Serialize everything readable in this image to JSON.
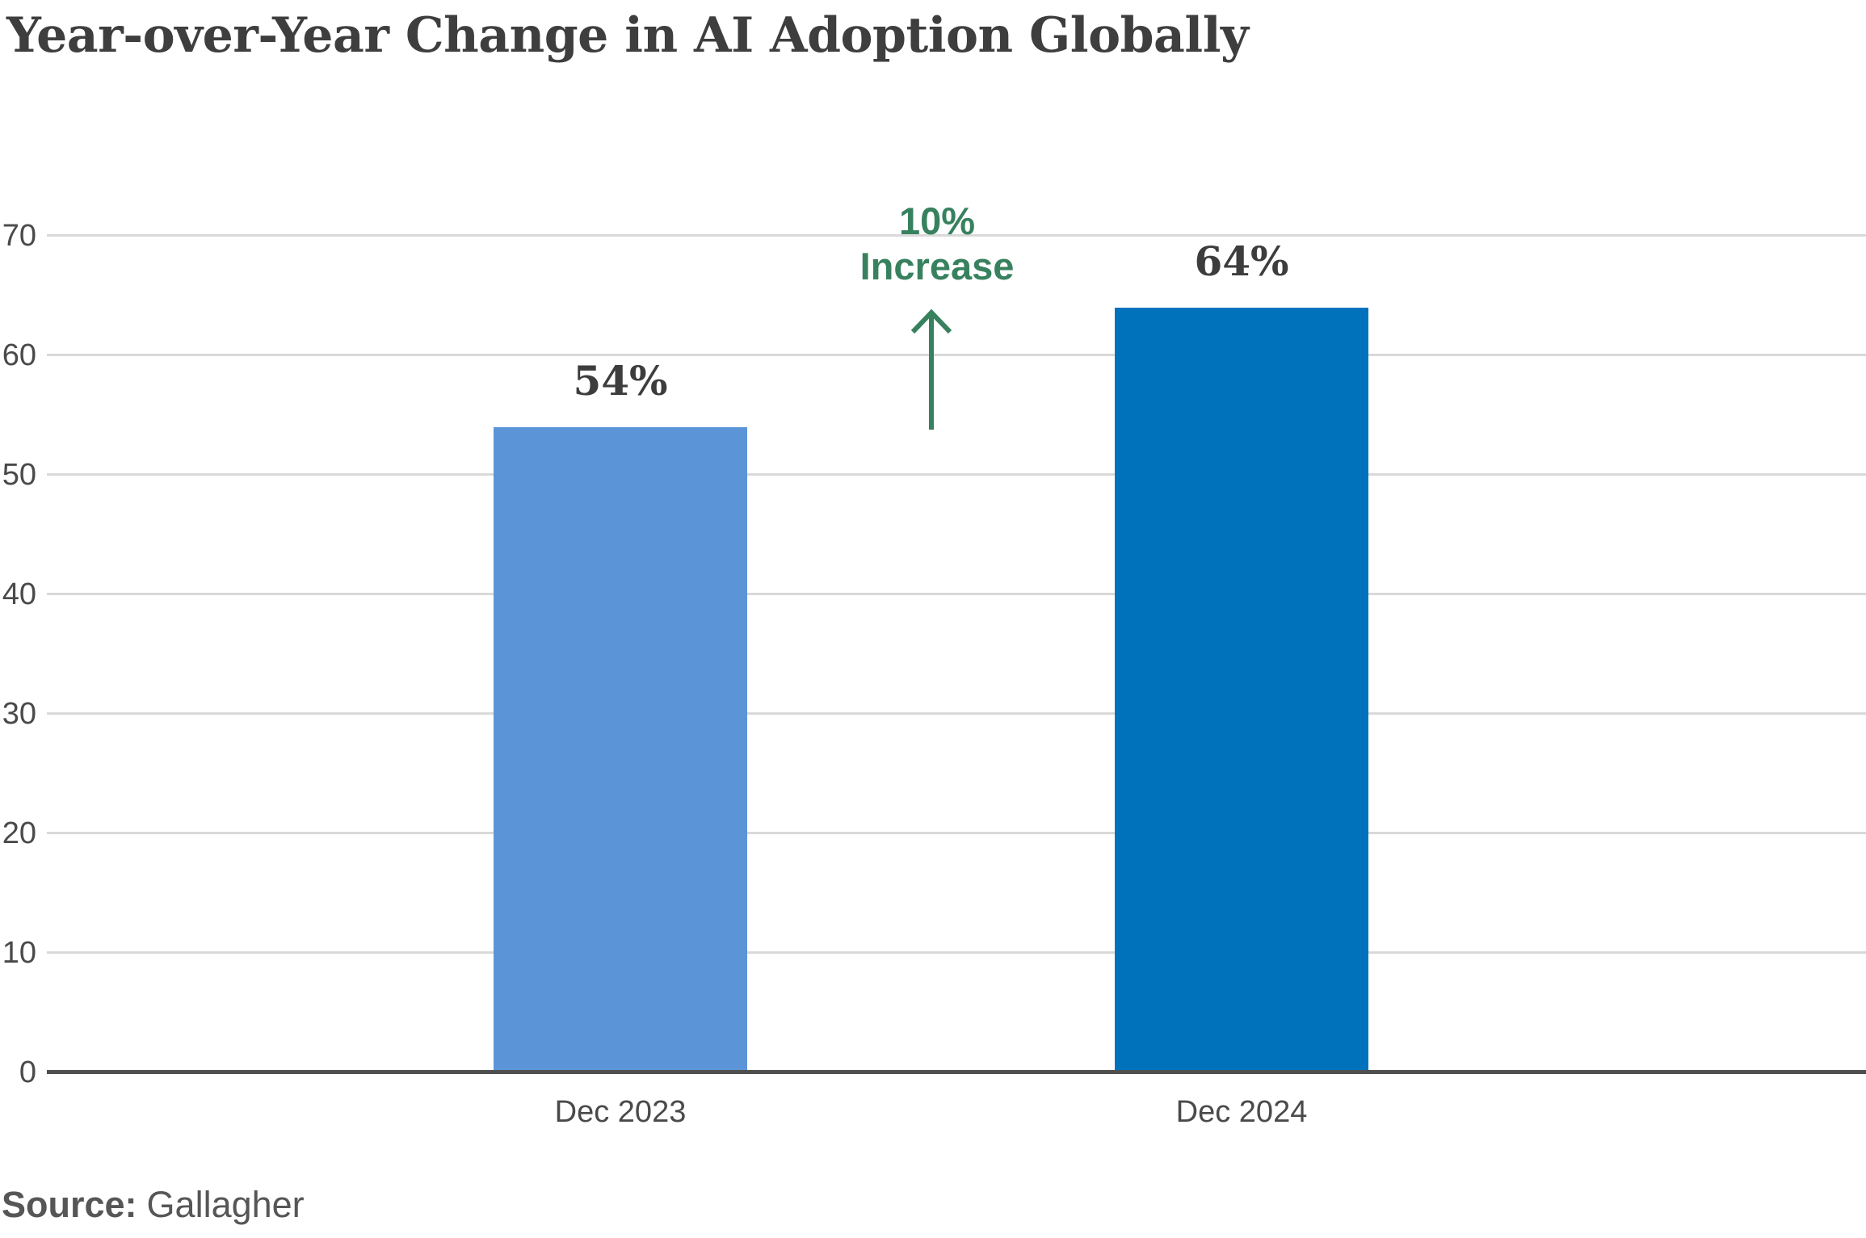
{
  "header": {
    "title": "Year-over-Year Change in AI Adoption Globally"
  },
  "chart_data": {
    "type": "bar",
    "title": "Year-over-Year Change in AI Adoption Globally",
    "categories": [
      "Dec 2023",
      "Dec 2024"
    ],
    "values": [
      54,
      64
    ],
    "value_labels": [
      "54%",
      "64%"
    ],
    "xlabel": "",
    "ylabel": "",
    "ylim": [
      0,
      70
    ],
    "yticks": [
      0,
      10,
      20,
      30,
      40,
      50,
      60,
      70
    ],
    "grid": "horizontal",
    "legend": "none",
    "bar_colors": [
      "#5B95D8",
      "#0072BC"
    ],
    "annotation": {
      "line1": "10%",
      "line2": "Increase",
      "color": "#38815F",
      "arrow": "up"
    }
  },
  "colors": {
    "title_text": "#3E3E3E",
    "tick_text": "#4A4A4A",
    "gridline": "#D9D9D9",
    "axis_line": "#4F4F4F",
    "bar_2023": "#5B95D8",
    "bar_2024": "#0072BC",
    "annotation_green": "#38815F",
    "source_text": "#565656",
    "background": "#FFFFFF"
  },
  "footer": {
    "source_label": "Source:",
    "source_value": "Gallagher"
  }
}
